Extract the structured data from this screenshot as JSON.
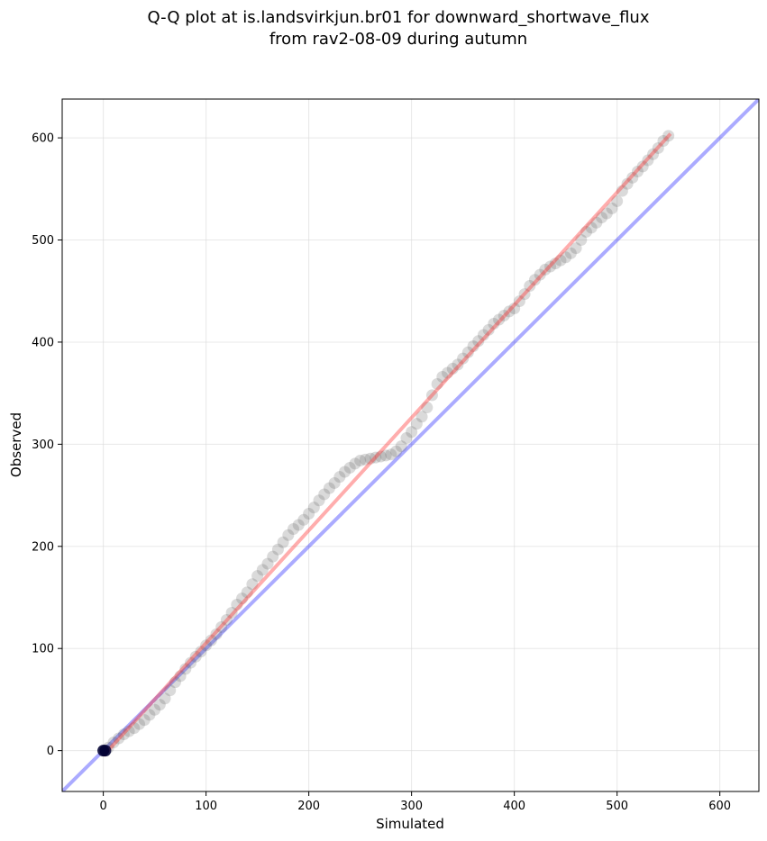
{
  "chart_data": {
    "type": "scatter",
    "title_lines": [
      "Q-Q plot at is.landsvirkjun.br01 for downward_shortwave_flux",
      "from rav2-08-09 during autumn"
    ],
    "xlabel": "Simulated",
    "ylabel": "Observed",
    "xlim": [
      -40,
      638
    ],
    "ylim": [
      -40,
      638
    ],
    "x_ticks": [
      0,
      100,
      200,
      300,
      400,
      500,
      600
    ],
    "y_ticks": [
      0,
      100,
      200,
      300,
      400,
      500,
      600
    ],
    "grid": true,
    "colors": {
      "points": "#555555",
      "identity_line": "#0000ff",
      "fit_line": "#ff3333",
      "low_points": "#000033"
    },
    "reference_lines": [
      {
        "kind": "identity",
        "x": [
          -40,
          638
        ],
        "y": [
          -40,
          638
        ]
      },
      {
        "kind": "fit",
        "x": [
          0,
          552
        ],
        "y": [
          -5,
          604
        ]
      }
    ],
    "quantiles": {
      "x": [
        0,
        2,
        5,
        10,
        15,
        20,
        25,
        30,
        35,
        40,
        45,
        50,
        55,
        60,
        65,
        70,
        75,
        80,
        85,
        90,
        95,
        100,
        105,
        110,
        115,
        120,
        125,
        130,
        135,
        140,
        145,
        150,
        155,
        160,
        165,
        170,
        175,
        180,
        185,
        190,
        195,
        200,
        205,
        210,
        215,
        220,
        225,
        230,
        235,
        240,
        245,
        250,
        255,
        260,
        265,
        270,
        275,
        280,
        285,
        290,
        295,
        300,
        305,
        310,
        315,
        320,
        325,
        330,
        335,
        340,
        345,
        350,
        355,
        360,
        365,
        370,
        375,
        380,
        385,
        390,
        395,
        400,
        405,
        410,
        415,
        420,
        425,
        430,
        435,
        440,
        445,
        450,
        455,
        460,
        465,
        470,
        475,
        480,
        485,
        490,
        495,
        500,
        505,
        510,
        515,
        520,
        525,
        530,
        535,
        540,
        545,
        550
      ],
      "y": [
        0,
        0,
        3,
        8,
        12,
        16,
        19,
        22,
        26,
        30,
        35,
        40,
        45,
        51,
        59,
        67,
        73,
        80,
        86,
        92,
        97,
        103,
        108,
        114,
        121,
        128,
        135,
        143,
        149,
        155,
        163,
        171,
        177,
        183,
        190,
        197,
        204,
        211,
        217,
        221,
        226,
        232,
        238,
        245,
        251,
        257,
        262,
        268,
        273,
        277,
        281,
        284,
        285,
        286,
        287,
        288,
        289,
        290,
        293,
        298,
        306,
        312,
        320,
        327,
        336,
        348,
        359,
        366,
        370,
        374,
        378,
        384,
        390,
        396,
        401,
        407,
        412,
        418,
        422,
        426,
        430,
        433,
        440,
        447,
        455,
        461,
        466,
        471,
        474,
        477,
        480,
        483,
        487,
        492,
        500,
        508,
        512,
        517,
        522,
        526,
        531,
        538,
        548,
        555,
        561,
        567,
        572,
        578,
        584,
        590,
        597,
        602
      ]
    }
  }
}
